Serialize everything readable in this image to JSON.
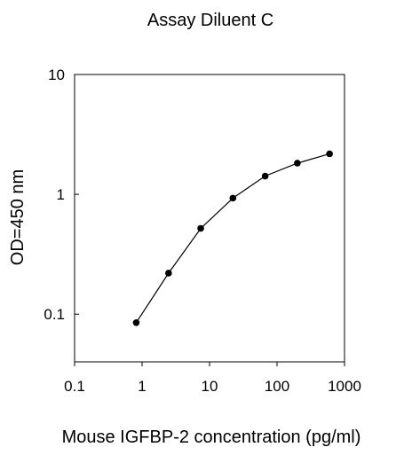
{
  "chart_data": {
    "type": "line",
    "title": "Assay Diluent C",
    "xlabel": "Mouse IGFBP-2 concentration (pg/ml)",
    "ylabel": "OD=450 nm",
    "x_scale": "log",
    "y_scale": "log",
    "xlim": [
      0.1,
      1000
    ],
    "ylim": [
      0.04,
      10
    ],
    "x_ticks": [
      0.1,
      1,
      10,
      100,
      1000
    ],
    "x_tick_labels": [
      "0.1",
      "1",
      "10",
      "100",
      "1000"
    ],
    "y_ticks": [
      0.1,
      1,
      10
    ],
    "y_tick_labels": [
      "0.1",
      "1",
      "10"
    ],
    "grid": false,
    "series": [
      {
        "x": [
          0.82,
          2.47,
          7.4,
          22.2,
          66.7,
          200,
          600
        ],
        "y": [
          0.085,
          0.22,
          0.52,
          0.93,
          1.42,
          1.82,
          2.18
        ]
      }
    ],
    "colors": {
      "line": "#000000",
      "marker": "#000000",
      "axes": "#000000",
      "background": "#ffffff"
    }
  }
}
